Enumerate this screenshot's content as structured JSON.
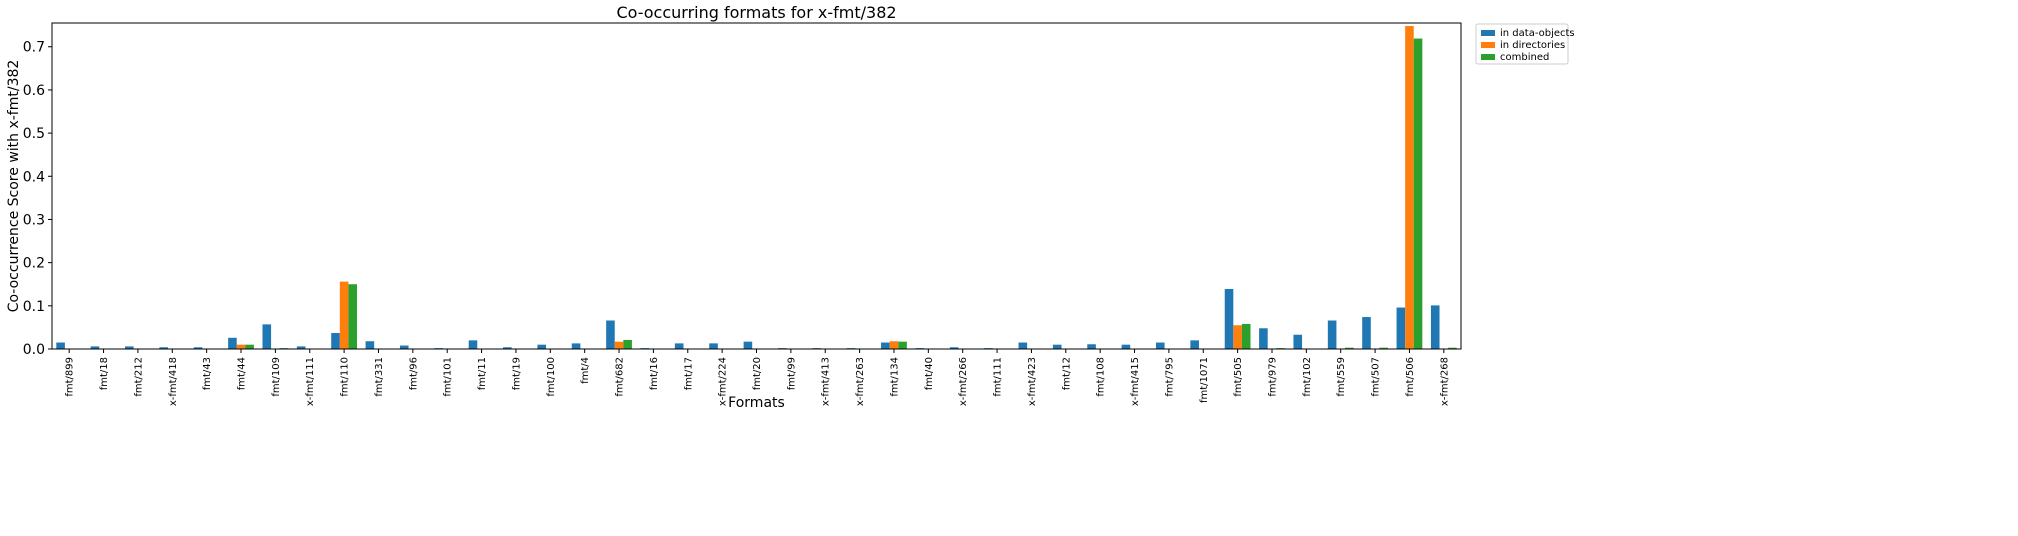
{
  "chart_data": {
    "type": "bar",
    "title": "Co-occurring formats for x-fmt/382",
    "xlabel": "Formats",
    "ylabel": "Co-occurrence Score with x-fmt/382",
    "ylim": [
      0,
      0.755
    ],
    "yticks": [
      0.0,
      0.1,
      0.2,
      0.3,
      0.4,
      0.5,
      0.6,
      0.7
    ],
    "ytick_labels": [
      "0.0",
      "0.1",
      "0.2",
      "0.3",
      "0.4",
      "0.5",
      "0.6",
      "0.7"
    ],
    "grid": false,
    "legend_position": "outside upper right",
    "categories": [
      "fmt/899",
      "fmt/18",
      "fmt/212",
      "x-fmt/418",
      "fmt/43",
      "fmt/44",
      "fmt/109",
      "x-fmt/111",
      "fmt/110",
      "fmt/331",
      "fmt/96",
      "fmt/101",
      "fmt/11",
      "fmt/19",
      "fmt/100",
      "fmt/4",
      "fmt/682",
      "fmt/16",
      "fmt/17",
      "x-fmt/224",
      "fmt/20",
      "fmt/99",
      "x-fmt/413",
      "x-fmt/263",
      "fmt/134",
      "fmt/40",
      "x-fmt/266",
      "fmt/111",
      "x-fmt/423",
      "fmt/12",
      "fmt/108",
      "x-fmt/415",
      "fmt/795",
      "fmt/1071",
      "fmt/505",
      "fmt/979",
      "fmt/102",
      "fmt/559",
      "fmt/507",
      "fmt/506",
      "x-fmt/268"
    ],
    "series": [
      {
        "name": "in data-objects",
        "color": "#1f77b4",
        "values": [
          0.015,
          0.006,
          0.006,
          0.004,
          0.004,
          0.026,
          0.057,
          0.006,
          0.037,
          0.018,
          0.008,
          0.002,
          0.02,
          0.004,
          0.01,
          0.013,
          0.066,
          0.002,
          0.013,
          0.013,
          0.017,
          0.002,
          0.002,
          0.002,
          0.015,
          0.002,
          0.004,
          0.002,
          0.015,
          0.01,
          0.011,
          0.01,
          0.015,
          0.02,
          0.139,
          0.048,
          0.033,
          0.066,
          0.074,
          0.096,
          0.101
        ]
      },
      {
        "name": "in directories",
        "color": "#ff7f0e",
        "values": [
          0,
          0,
          0,
          0,
          0,
          0.01,
          0.001,
          0,
          0.156,
          0,
          0,
          0,
          0,
          0,
          0,
          0,
          0.017,
          0,
          0,
          0,
          0,
          0,
          0,
          0,
          0.018,
          0,
          0,
          0,
          0,
          0,
          0,
          0,
          0,
          0,
          0.055,
          0,
          0,
          0,
          0,
          0.748,
          0
        ]
      },
      {
        "name": "combined",
        "color": "#2ca02c",
        "values": [
          0,
          0,
          0,
          0,
          0,
          0.01,
          0.002,
          0,
          0.15,
          0,
          0,
          0,
          0,
          0,
          0,
          0,
          0.021,
          0,
          0,
          0,
          0,
          0,
          0,
          0,
          0.017,
          0,
          0,
          0,
          0,
          0,
          0,
          0,
          0,
          0,
          0.058,
          0.002,
          0.001,
          0.003,
          0.003,
          0.719,
          0.003
        ]
      }
    ]
  }
}
